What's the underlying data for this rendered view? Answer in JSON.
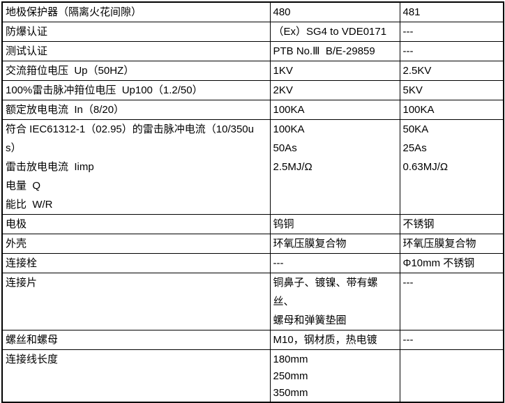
{
  "colors": {
    "border": "#000000",
    "background": "#ffffff",
    "text": "#000000"
  },
  "table": {
    "rows": [
      {
        "label": "地极保护器（隔离火花间隙）",
        "col_480": "480",
        "col_481": "481"
      },
      {
        "label": "防爆认证",
        "col_480": "（Ex）SG4 to VDE0171",
        "col_481": "---"
      },
      {
        "label": "测试认证",
        "col_480": "PTB No.Ⅲ  B/E-29859",
        "col_481": "---"
      },
      {
        "label": "交流箝位电压  Up（50HZ）",
        "col_480": "1KV",
        "col_481": "2.5KV"
      },
      {
        "label": "100%雷击脉冲箝位电压  Up100（1.2/50）",
        "col_480": "2KV",
        "col_481": "5KV"
      },
      {
        "label": "额定放电电流  In（8/20）",
        "col_480": "100KA",
        "col_481": "100KA"
      },
      {
        "label": "符合 IEC61312-1（02.95）的雷击脉冲电流（10/350us）\n雷击放电电流  Iimp\n电量  Q\n能比  W/R",
        "col_480": "100KA\n50As\n2.5MJ/Ω",
        "col_481": "50KA\n25As\n0.63MJ/Ω"
      },
      {
        "label": "电极",
        "col_480": "钨铜",
        "col_481": "不锈钢"
      },
      {
        "label": "外壳",
        "col_480": "环氧压膜复合物",
        "col_481": "环氧压膜复合物"
      },
      {
        "label": "连接栓",
        "col_480": "---",
        "col_481": "Φ10mm 不锈钢"
      },
      {
        "label": "连接片",
        "col_480": "铜鼻子、镀镍、带有螺丝、\n螺母和弹簧垫圈",
        "col_481": "---"
      },
      {
        "label": "螺丝和螺母",
        "col_480": "M10，钢材质，热电镀",
        "col_481": "---"
      },
      {
        "label": "连接线长度",
        "col_480": "180mm\n250mm\n350mm",
        "col_481": ""
      }
    ]
  }
}
